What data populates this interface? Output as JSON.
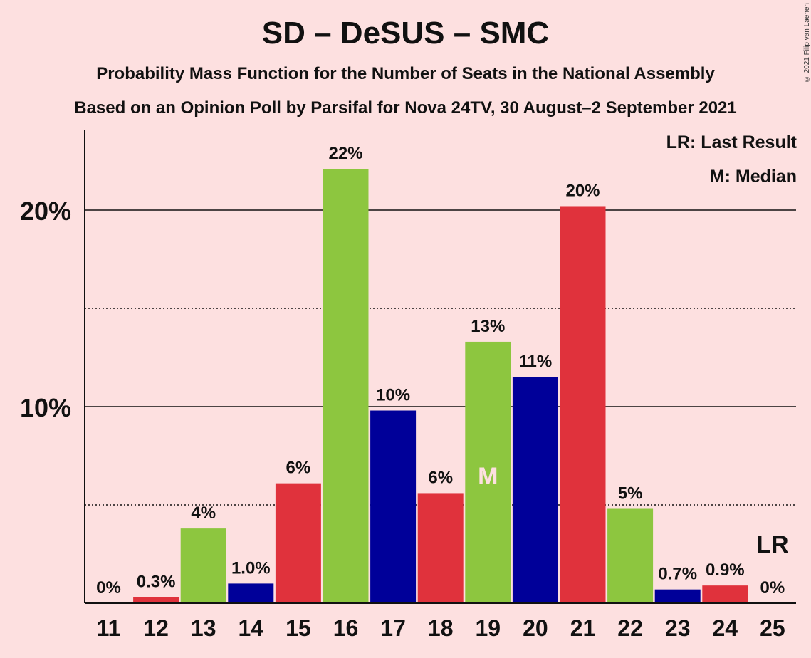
{
  "title": "SD – DeSUS – SMC",
  "subtitle1": "Probability Mass Function for the Number of Seats in the National Assembly",
  "subtitle2": "Based on an Opinion Poll by Parsifal for Nova 24TV, 30 August–2 September 2021",
  "copyright": "© 2021 Filip van Laenen",
  "legend": {
    "last_result": "LR: Last Result",
    "median": "M: Median"
  },
  "colors": {
    "background": "#fde0e0",
    "green": "#8dc63f",
    "blue": "#000099",
    "red": "#e0323c"
  },
  "chart_data": {
    "type": "bar",
    "categories": [
      "11",
      "12",
      "13",
      "14",
      "15",
      "16",
      "17",
      "18",
      "19",
      "20",
      "21",
      "22",
      "23",
      "24",
      "25"
    ],
    "values": [
      0,
      0.3,
      3.8,
      1.0,
      6.1,
      22.1,
      9.8,
      5.6,
      13.3,
      11.5,
      20.2,
      4.8,
      0.7,
      0.9,
      0
    ],
    "labels": [
      "0%",
      "0.3%",
      "4%",
      "1.0%",
      "6%",
      "22%",
      "10%",
      "6%",
      "13%",
      "11%",
      "20%",
      "5%",
      "0.7%",
      "0.9%",
      "0%"
    ],
    "bar_colors": [
      "green",
      "red",
      "green",
      "blue",
      "red",
      "green",
      "blue",
      "red",
      "green",
      "blue",
      "red",
      "green",
      "blue",
      "red",
      "green"
    ],
    "yticks": [
      10,
      20
    ],
    "ytick_labels": [
      "10%",
      "20%"
    ],
    "dotted_gridlines": [
      5,
      15
    ],
    "ylim": [
      0,
      24
    ],
    "median_category": "19",
    "median_marker": "M",
    "last_result_category": "25",
    "last_result_marker": "LR"
  }
}
